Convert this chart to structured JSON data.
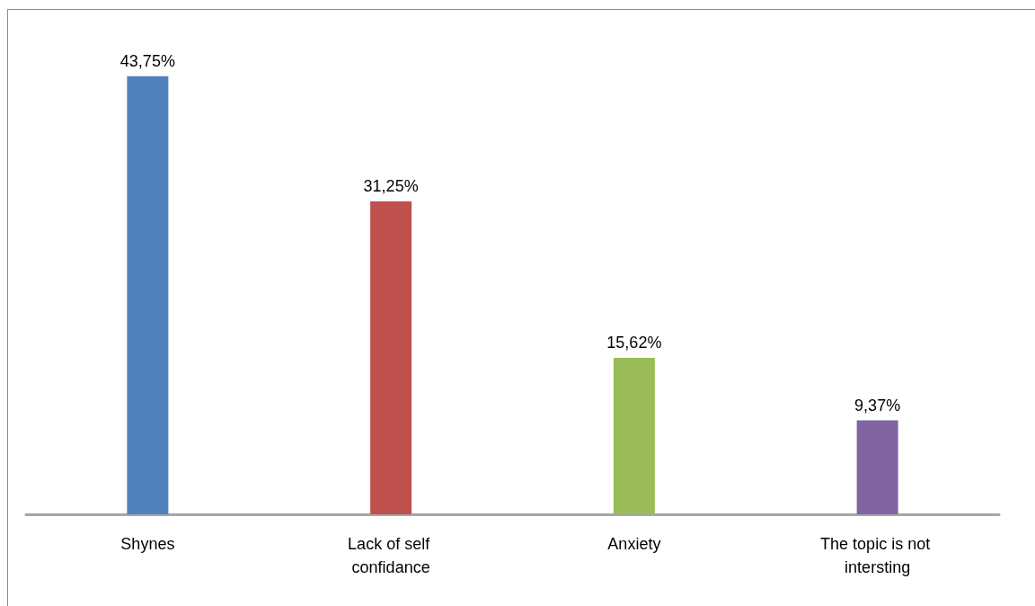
{
  "chart_data": {
    "type": "bar",
    "categories": [
      "Shynes",
      "Lack of self confidance",
      "Anxiety",
      "The topic is not intersting"
    ],
    "values": [
      43.75,
      31.25,
      15.62,
      9.37
    ],
    "colors": [
      "#4f81bd",
      "#c0504d",
      "#9bbb59",
      "#8064a2"
    ],
    "value_labels": [
      "43,75%",
      "31,25%",
      "15,62%",
      "9,37%"
    ]
  }
}
